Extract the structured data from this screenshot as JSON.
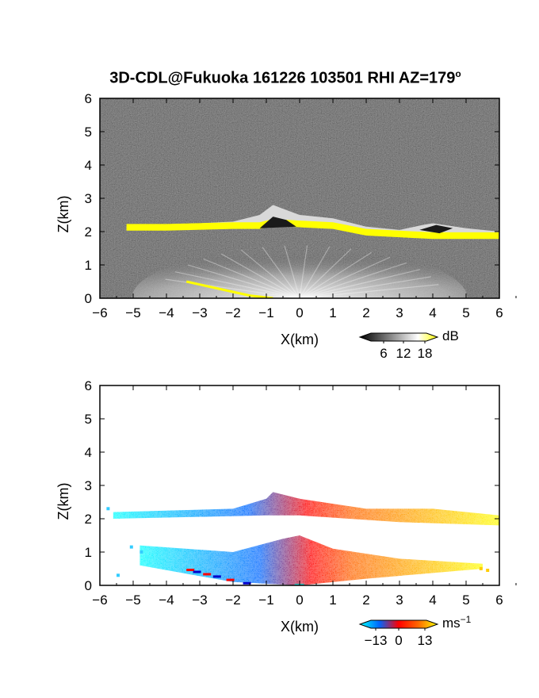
{
  "title": "3D-CDL@Fukuoka 161226 103501 RHI AZ=179",
  "title_degree": "o",
  "chart_data": [
    {
      "type": "heatmap",
      "panel": "top",
      "quantity": "backscatter intensity",
      "xlabel": "X(km)",
      "ylabel": "Z(km)",
      "xlim": [
        -6,
        6
      ],
      "ylim": [
        0,
        6
      ],
      "xticks": [
        "-6",
        "-5",
        "-4",
        "-3",
        "-2",
        "-1",
        "0",
        "1",
        "2",
        "3",
        "4",
        "5",
        "6"
      ],
      "yticks": [
        "0",
        "1",
        "2",
        "3",
        "4",
        "5",
        "6"
      ],
      "background": "#2b2b2b",
      "colorbar": {
        "unit": "dB",
        "ticks": [
          "6",
          "12",
          "18"
        ],
        "range": [
          0,
          20
        ],
        "colors": [
          "#000000",
          "#555555",
          "#aaaaaa",
          "#ffffff",
          "#ffff00"
        ]
      },
      "layers": [
        {
          "name": "cloud base (strong echo)",
          "color": "#ffff00",
          "top": [
            [
              -5.2,
              2.15
            ],
            [
              -4,
              2.2
            ],
            [
              -2,
              2.3
            ],
            [
              -1.2,
              2.5
            ],
            [
              -0.8,
              2.8
            ],
            [
              -0.4,
              2.65
            ],
            [
              0,
              2.5
            ],
            [
              1,
              2.4
            ],
            [
              2,
              2.15
            ],
            [
              3,
              2.05
            ],
            [
              3.7,
              2.2
            ],
            [
              4,
              2.25
            ],
            [
              5,
              2.1
            ],
            [
              6,
              2.0
            ]
          ],
          "bottom": [
            [
              -5.2,
              2.05
            ],
            [
              -4,
              2.05
            ],
            [
              -2,
              2.1
            ],
            [
              -1.2,
              2.1
            ],
            [
              -0.8,
              2.2
            ],
            [
              0,
              2.15
            ],
            [
              1,
              2.1
            ],
            [
              2,
              1.9
            ],
            [
              3,
              1.85
            ],
            [
              4,
              1.8
            ],
            [
              5,
              1.8
            ],
            [
              6,
              1.8
            ]
          ]
        },
        {
          "name": "ground echo",
          "color": "#ffff00",
          "points": [
            [
              -3.4,
              0.5
            ],
            [
              -2.5,
              0.3
            ],
            [
              -1.5,
              0.08
            ],
            [
              -0.8,
              0.0
            ]
          ]
        }
      ],
      "fan": {
        "origin": [
          0,
          0
        ],
        "radius_km": 3.6,
        "color": "#dcdcdc"
      }
    },
    {
      "type": "heatmap",
      "panel": "bottom",
      "quantity": "radial velocity",
      "xlabel": "X(km)",
      "ylabel": "Z(km)",
      "xlim": [
        -6,
        6
      ],
      "ylim": [
        0,
        6
      ],
      "xticks": [
        "-6",
        "-5",
        "-4",
        "-3",
        "-2",
        "-1",
        "0",
        "1",
        "2",
        "3",
        "4",
        "5",
        "6"
      ],
      "yticks": [
        "0",
        "1",
        "2",
        "3",
        "4",
        "5",
        "6"
      ],
      "colorbar": {
        "unit": "ms",
        "unit_exponent": "−1",
        "ticks": [
          "−13",
          "0",
          "13"
        ],
        "range": [
          -13,
          13
        ],
        "colors": [
          "#00ffff",
          "#0066ff",
          "#ff0000",
          "#ff6600",
          "#ffff00"
        ]
      },
      "bands": [
        {
          "name": "cloud-base band",
          "x": [
            -5.6,
            6
          ],
          "z_bottom": [
            [
              -5.6,
              2.0
            ],
            [
              -1,
              2.1
            ],
            [
              0,
              2.1
            ],
            [
              3,
              1.9
            ],
            [
              6,
              1.8
            ]
          ],
          "z_top": [
            [
              -5.6,
              2.2
            ],
            [
              -2,
              2.3
            ],
            [
              -1,
              2.6
            ],
            [
              -0.8,
              2.8
            ],
            [
              0,
              2.6
            ],
            [
              2,
              2.3
            ],
            [
              4,
              2.3
            ],
            [
              6,
              2.1
            ]
          ]
        },
        {
          "name": "boundary-layer fan",
          "x": [
            -4.8,
            5.5
          ],
          "z_bottom": [
            [
              -4.8,
              0.6
            ],
            [
              -2,
              0.1
            ],
            [
              0,
              0
            ],
            [
              2,
              0.2
            ],
            [
              5.5,
              0.5
            ]
          ],
          "z_top": [
            [
              -4.8,
              1.2
            ],
            [
              -2,
              1.0
            ],
            [
              -0.5,
              1.4
            ],
            [
              0,
              1.5
            ],
            [
              1,
              1.1
            ],
            [
              3,
              0.8
            ],
            [
              5.5,
              0.65
            ]
          ]
        }
      ]
    }
  ]
}
